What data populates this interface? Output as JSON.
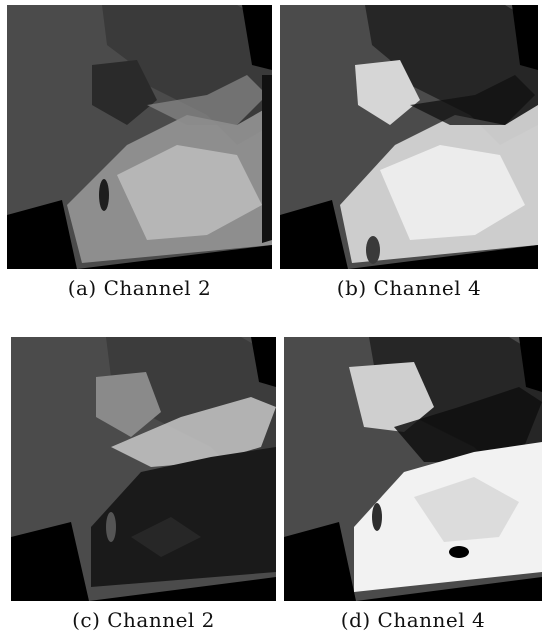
{
  "figure": {
    "panels": [
      {
        "id": "a",
        "caption": "(a) Channel 2"
      },
      {
        "id": "b",
        "caption": "(b) Channel 4"
      },
      {
        "id": "c",
        "caption": "(c) Channel 2"
      },
      {
        "id": "d",
        "caption": "(d) Channel 4"
      }
    ]
  }
}
